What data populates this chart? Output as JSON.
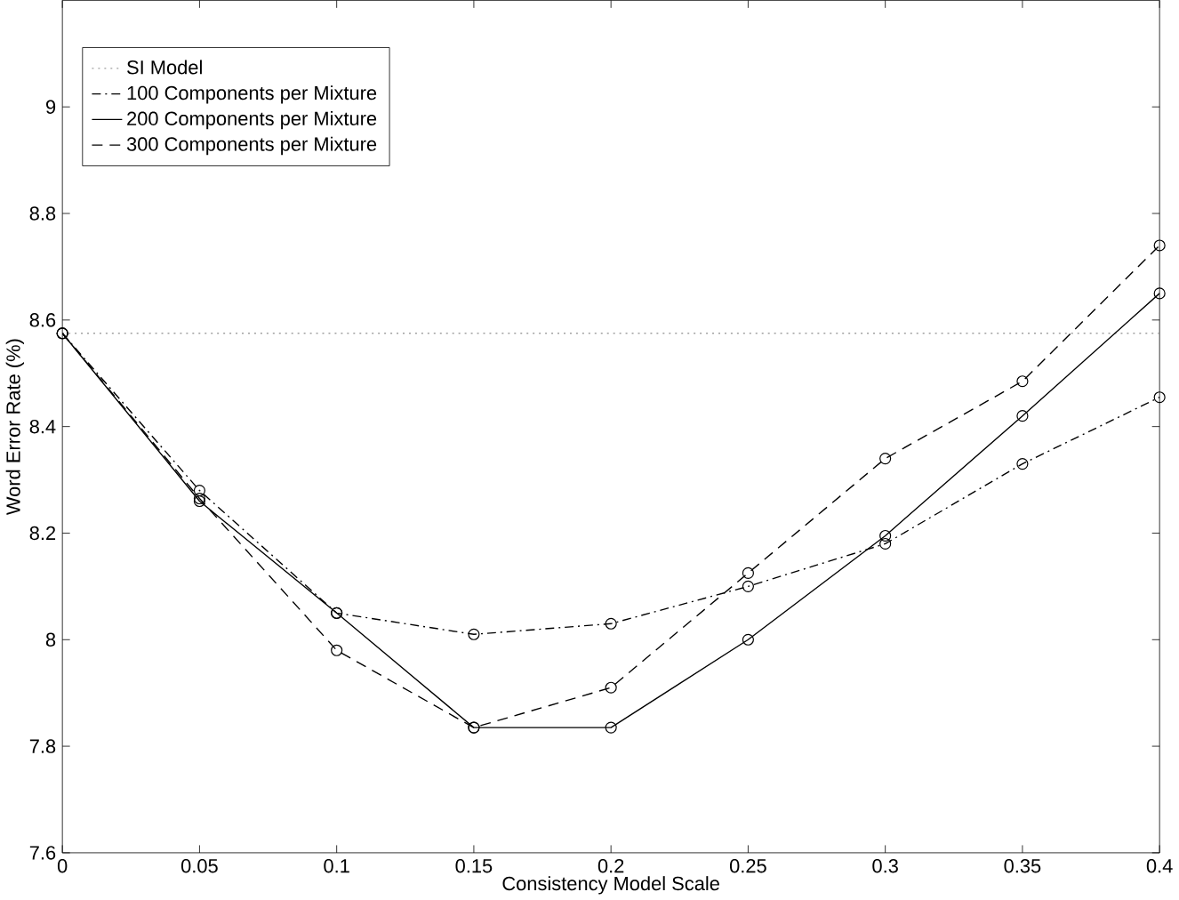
{
  "chart_data": {
    "type": "line",
    "xlabel": "Consistency Model Scale",
    "ylabel": "Word Error Rate (%)",
    "x": [
      0,
      0.05,
      0.1,
      0.15,
      0.2,
      0.25,
      0.3,
      0.35,
      0.4
    ],
    "series": [
      {
        "name": "SI Model",
        "color": "#a0a0a0",
        "line_style": "dotted",
        "marker": "none",
        "values": [
          8.575,
          8.575,
          8.575,
          8.575,
          8.575,
          8.575,
          8.575,
          8.575,
          8.575
        ]
      },
      {
        "name": "100 Components per Mixture",
        "color": "#000000",
        "line_style": "dashdot",
        "marker": "circle",
        "values": [
          8.575,
          8.28,
          8.05,
          8.01,
          8.03,
          8.1,
          8.18,
          8.33,
          8.455
        ]
      },
      {
        "name": "200 Components per Mixture",
        "color": "#000000",
        "line_style": "solid",
        "marker": "circle",
        "values": [
          8.575,
          8.26,
          8.05,
          7.835,
          7.835,
          8.0,
          8.195,
          8.42,
          8.65
        ]
      },
      {
        "name": "300 Components per Mixture",
        "color": "#000000",
        "line_style": "dashed",
        "marker": "circle",
        "values": [
          8.575,
          8.265,
          7.98,
          7.835,
          7.91,
          8.125,
          8.34,
          8.485,
          8.74
        ]
      }
    ],
    "xlim": [
      0,
      0.4
    ],
    "xticks": [
      0,
      0.05,
      0.1,
      0.15,
      0.2,
      0.25,
      0.3,
      0.35,
      0.4
    ],
    "ylim": [
      7.6,
      9.2
    ],
    "yticks": [
      7.6,
      7.8,
      8,
      8.2,
      8.4,
      8.6,
      8.8,
      9
    ],
    "grid": false,
    "legend": "top left"
  }
}
